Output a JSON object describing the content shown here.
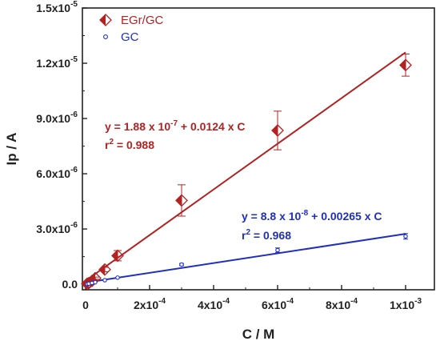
{
  "chart_data": {
    "type": "scatter",
    "xlabel": "C / M",
    "ylabel": "Ip / A",
    "xlim": [
      -1e-05,
      0.00109
    ],
    "ylim": [
      -3e-07,
      1.5e-05
    ],
    "x_ticks": [
      0,
      0.0002,
      0.0004,
      0.0006,
      0.0008,
      0.001
    ],
    "x_tick_labels": [
      {
        "base": "0",
        "exp": ""
      },
      {
        "base": "2x10",
        "exp": "-4"
      },
      {
        "base": "4x10",
        "exp": "-4"
      },
      {
        "base": "6x10",
        "exp": "-4"
      },
      {
        "base": "8x10",
        "exp": "-4"
      },
      {
        "base": "1x10",
        "exp": "-3"
      }
    ],
    "y_ticks": [
      0,
      3e-06,
      6e-06,
      9e-06,
      1.2e-05,
      1.5e-05
    ],
    "y_tick_labels": [
      {
        "base": "0.0",
        "exp": ""
      },
      {
        "base": "3.0x10",
        "exp": "-6"
      },
      {
        "base": "6.0x10",
        "exp": "-6"
      },
      {
        "base": "9.0x10",
        "exp": "-6"
      },
      {
        "base": "1.2x10",
        "exp": "-5"
      },
      {
        "base": "1.5x10",
        "exp": "-5"
      }
    ],
    "series": [
      {
        "name": "EGr/GC",
        "color": "#b22222",
        "marker": "half-filled-diamond",
        "points": [
          {
            "x": 5e-06,
            "y": 3e-08,
            "err": 3e-08
          },
          {
            "x": 1e-05,
            "y": 6e-08,
            "err": 4e-08
          },
          {
            "x": 2e-05,
            "y": 1.8e-07,
            "err": 5e-08
          },
          {
            "x": 3e-05,
            "y": 3.3e-07,
            "err": 6e-08
          },
          {
            "x": 6e-05,
            "y": 8e-07,
            "err": 1.2e-07
          },
          {
            "x": 0.0001,
            "y": 1.55e-06,
            "err": 2.8e-07
          },
          {
            "x": 0.0003,
            "y": 4.55e-06,
            "err": 8.5e-07
          },
          {
            "x": 0.0006,
            "y": 8.35e-06,
            "err": 1.05e-06
          },
          {
            "x": 0.001,
            "y": 1.19e-05,
            "err": 6e-07
          }
        ],
        "fit": {
          "intercept": 1.88e-07,
          "slope": 0.0124,
          "x_range": [
            0,
            0.001
          ]
        }
      },
      {
        "name": "GC",
        "color": "#1f2fbf",
        "marker": "open-circle",
        "points": [
          {
            "x": 5e-06,
            "y": 1e-08,
            "err": 2e-08
          },
          {
            "x": 1e-05,
            "y": 3e-08,
            "err": 2e-08
          },
          {
            "x": 2e-05,
            "y": 7e-08,
            "err": 2e-08
          },
          {
            "x": 3e-05,
            "y": 1.1e-07,
            "err": 2e-08
          },
          {
            "x": 6e-05,
            "y": 2.2e-07,
            "err": 3e-08
          },
          {
            "x": 0.0001,
            "y": 3.6e-07,
            "err": 4e-08
          },
          {
            "x": 0.0003,
            "y": 1.07e-06,
            "err": 6e-08
          },
          {
            "x": 0.0006,
            "y": 1.85e-06,
            "err": 1.2e-07
          },
          {
            "x": 0.001,
            "y": 2.6e-06,
            "err": 1.5e-07
          }
        ],
        "fit": {
          "intercept": 8.8e-08,
          "slope": 0.00265,
          "x_range": [
            0,
            0.001
          ]
        }
      }
    ],
    "legend": {
      "placement": "top-left",
      "entries": [
        "EGr/GC",
        "GC"
      ]
    },
    "annotations": [
      {
        "series": "EGr/GC",
        "line1_pre": "y = 1.88 x 10",
        "line1_exp": "-7",
        "line1_post": " + 0.0124 x C",
        "line2_pre": "r",
        "line2_exp": "2",
        "line2_post": " = 0.988"
      },
      {
        "series": "GC",
        "line1_pre": "y = 8.8 x 10",
        "line1_exp": "-8",
        "line1_post": " + 0.00265 x C",
        "line2_pre": "r",
        "line2_exp": "2",
        "line2_post": " = 0.968"
      }
    ],
    "grid": false
  }
}
